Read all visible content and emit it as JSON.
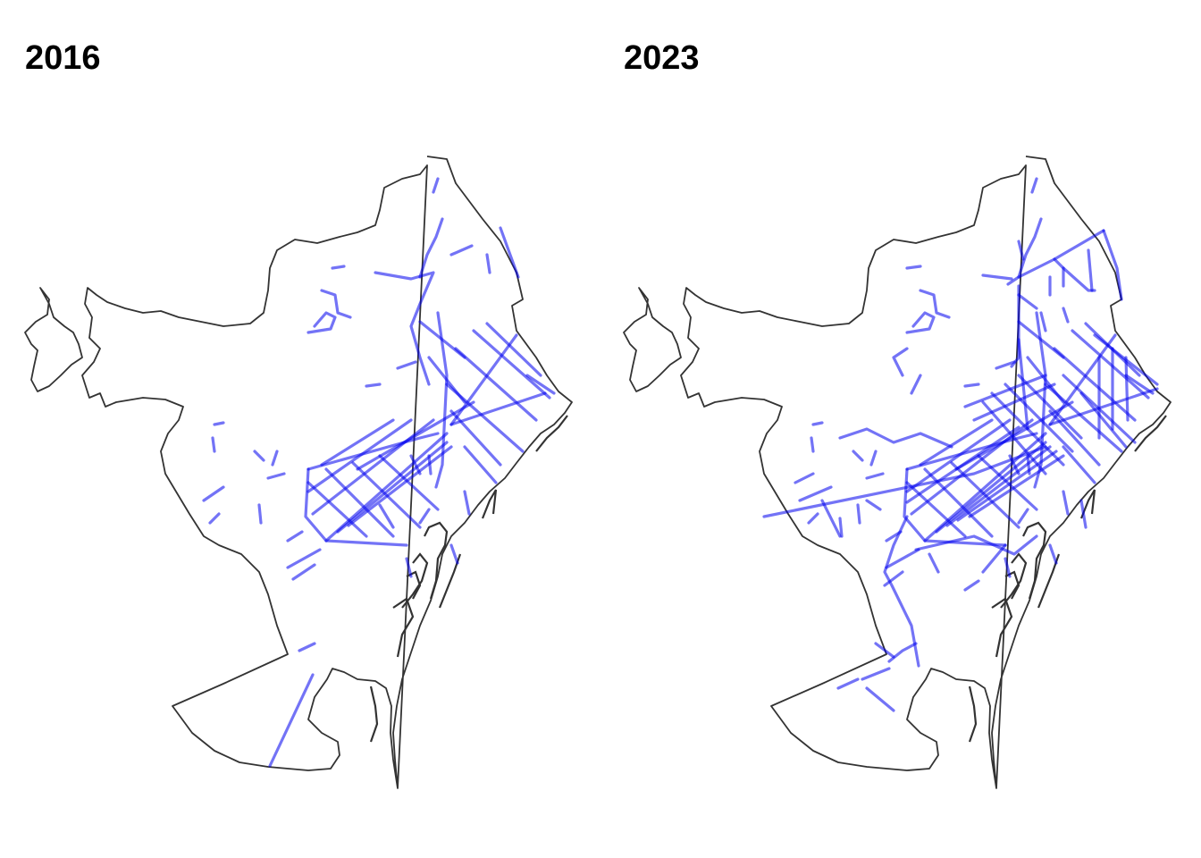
{
  "panels": [
    {
      "title": "2016"
    },
    {
      "title": "2023"
    }
  ],
  "colors": {
    "lane": "#0000ee",
    "boundary": "#333333",
    "background": "#ffffff"
  }
}
